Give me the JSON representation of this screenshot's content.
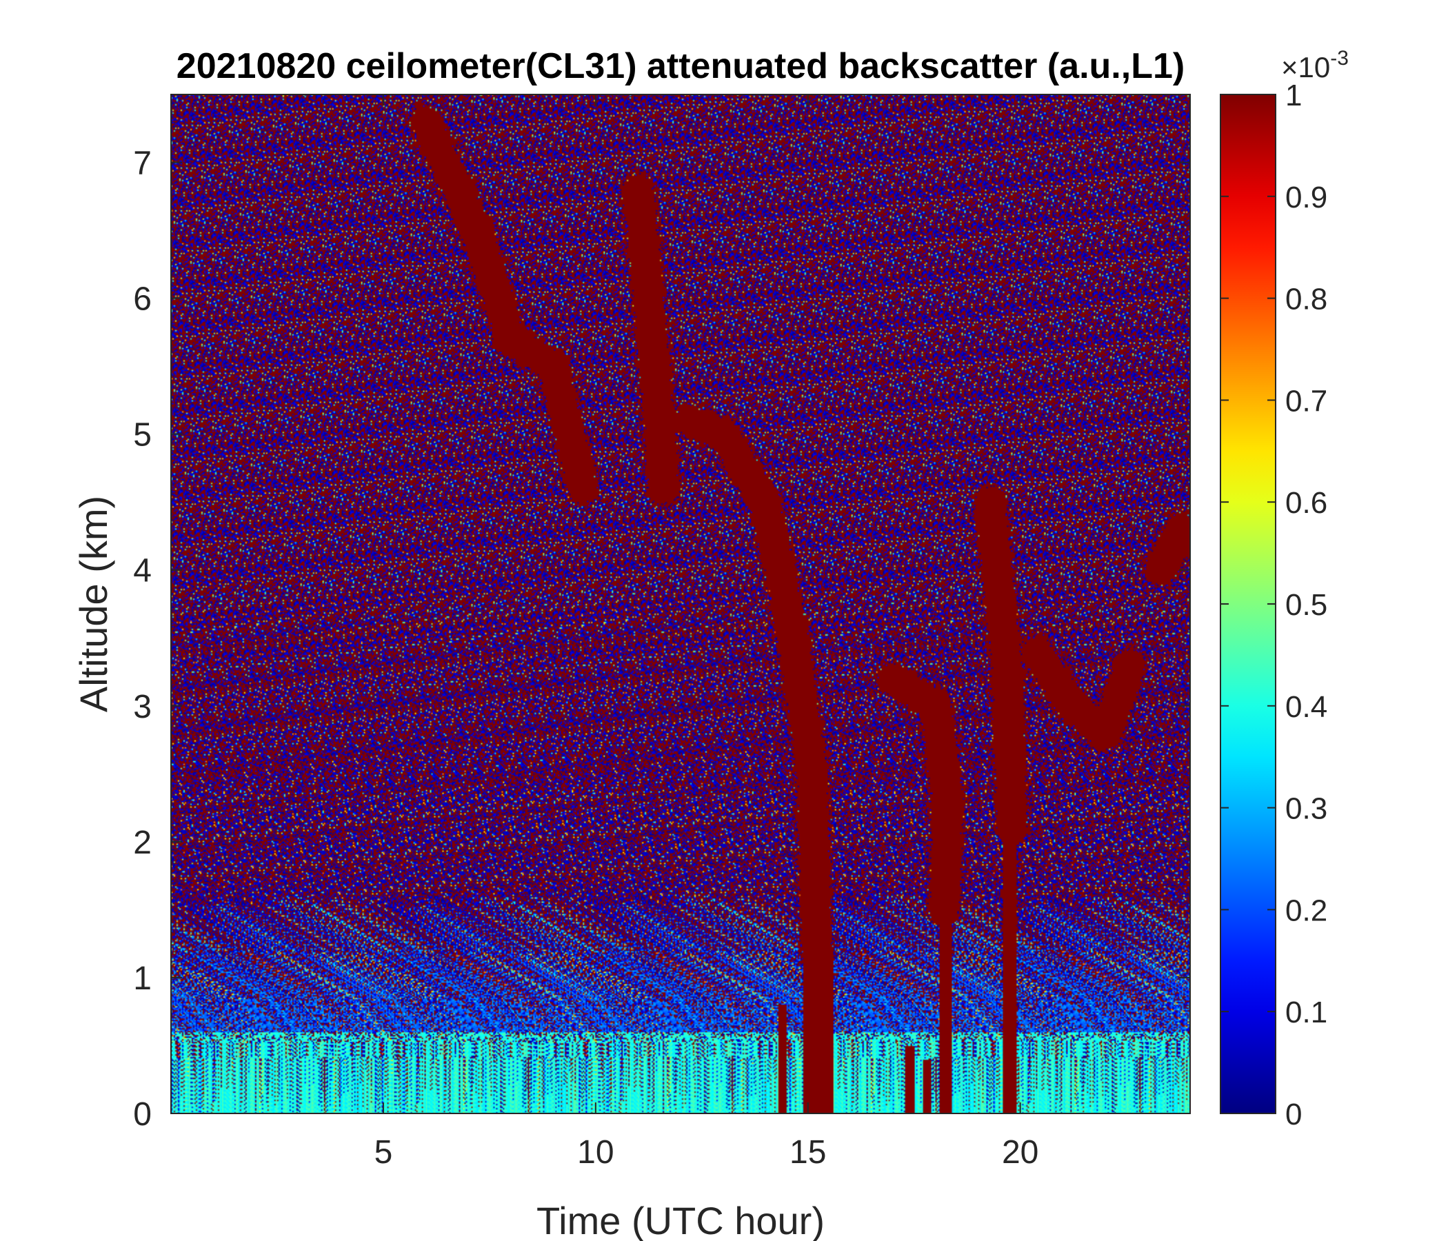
{
  "chart_data": {
    "type": "heatmap",
    "title": "20210820 ceilometer(CL31) attenuated backscatter (a.u.,L1)",
    "xlabel": "Time (UTC hour)",
    "ylabel": "Altitude (km)",
    "xlim": [
      0,
      24
    ],
    "ylim": [
      0,
      7.5
    ],
    "xticks": [
      5,
      10,
      15,
      20
    ],
    "yticks": [
      0,
      1,
      2,
      3,
      4,
      5,
      6,
      7
    ],
    "colorbar": {
      "colormap": "jet",
      "range": [
        0,
        1
      ],
      "ticks": [
        0,
        0.1,
        0.2,
        0.3,
        0.4,
        0.5,
        0.6,
        0.7,
        0.8,
        0.9,
        1
      ],
      "tick_labels": [
        "0",
        "0.1",
        "0.2",
        "0.3",
        "0.4",
        "0.5",
        "0.6",
        "0.7",
        "0.8",
        "0.9",
        "1"
      ],
      "multiplier_base": "×10",
      "multiplier_exp": "-3"
    },
    "features": {
      "surface_layer": {
        "time": [
          0,
          24
        ],
        "top_km": 0.6,
        "level": 0.35
      },
      "rain_shafts": [
        {
          "time": [
            14.9,
            15.6
          ],
          "top_km": 1.2,
          "level": 1.0
        },
        {
          "time": [
            14.3,
            14.5
          ],
          "top_km": 0.8,
          "level": 1.0
        },
        {
          "time": [
            18.1,
            18.4
          ],
          "top_km": 1.5,
          "level": 1.0
        },
        {
          "time": [
            19.6,
            19.9
          ],
          "top_km": 2.1,
          "level": 1.0
        },
        {
          "time": [
            17.3,
            17.5
          ],
          "top_km": 0.5,
          "level": 1.0
        },
        {
          "time": [
            17.7,
            17.9
          ],
          "top_km": 0.4,
          "level": 1.0
        }
      ],
      "cloud_streaks": [
        {
          "points": [
            [
              6.0,
              7.3
            ],
            [
              7.2,
              6.5
            ],
            [
              8.0,
              5.7
            ],
            [
              9.0,
              5.5
            ],
            [
              9.7,
              4.6
            ]
          ],
          "level": 1.0
        },
        {
          "points": [
            [
              11.0,
              6.8
            ],
            [
              11.4,
              5.5
            ],
            [
              11.6,
              4.6
            ]
          ],
          "level": 1.0
        },
        {
          "points": [
            [
              12.2,
              5.1
            ],
            [
              13.0,
              5.0
            ],
            [
              14.0,
              4.5
            ],
            [
              14.6,
              3.6
            ],
            [
              15.1,
              2.5
            ],
            [
              15.2,
              1.2
            ]
          ],
          "level": 1.0
        },
        {
          "points": [
            [
              17.0,
              3.2
            ],
            [
              18.0,
              3.0
            ],
            [
              18.3,
              2.3
            ],
            [
              18.2,
              1.5
            ]
          ],
          "level": 1.0
        },
        {
          "points": [
            [
              19.3,
              4.5
            ],
            [
              19.7,
              3.2
            ],
            [
              19.8,
              2.1
            ]
          ],
          "level": 1.0
        },
        {
          "points": [
            [
              20.4,
              3.4
            ],
            [
              21.2,
              3.0
            ],
            [
              22.0,
              2.8
            ],
            [
              22.6,
              3.3
            ]
          ],
          "level": 1.0
        },
        {
          "points": [
            [
              23.3,
              4.0
            ],
            [
              23.8,
              4.3
            ]
          ],
          "level": 1.0
        }
      ]
    }
  }
}
